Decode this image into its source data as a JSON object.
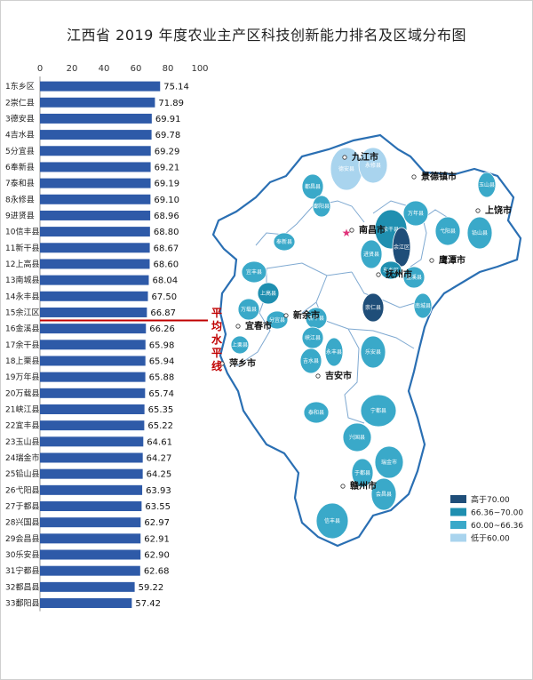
{
  "title": "江西省 2019 年度农业主产区科技创新能力排名及区域分布图",
  "chart_data": {
    "type": "bar",
    "orientation": "horizontal",
    "xlim": [
      0,
      100
    ],
    "xticks": [
      "0",
      "20",
      "40",
      "60",
      "80",
      "100"
    ],
    "categories": [
      "1东乡区",
      "2崇仁县",
      "3德安县",
      "4吉水县",
      "5分宜县",
      "6奉新县",
      "7泰和县",
      "8永修县",
      "9进贤县",
      "10信丰县",
      "11新干县",
      "12上高县",
      "13南城县",
      "14永丰县",
      "15余江区",
      "16金溪县",
      "17余干县",
      "18上栗县",
      "19万年县",
      "20万载县",
      "21峡江县",
      "22宜丰县",
      "23玉山县",
      "24瑞金市",
      "25铅山县",
      "26弋阳县",
      "27于都县",
      "28兴国县",
      "29会昌县",
      "30乐安县",
      "31宁都县",
      "32都昌县",
      "33鄱阳县"
    ],
    "values": [
      75.14,
      71.89,
      69.91,
      69.78,
      69.29,
      69.21,
      69.19,
      69.1,
      68.96,
      68.8,
      68.67,
      68.6,
      68.04,
      67.5,
      66.87,
      66.26,
      65.98,
      65.94,
      65.88,
      65.74,
      65.35,
      65.22,
      64.61,
      64.27,
      64.25,
      63.93,
      63.55,
      62.97,
      62.91,
      62.9,
      62.68,
      59.22,
      57.42
    ],
    "labels": [
      "75.14",
      "71.89",
      "69.91",
      "69.78",
      "69.29",
      "69.21",
      "69.19",
      "69.10",
      "68.96",
      "68.80",
      "68.67",
      "68.60",
      "68.04",
      "67.50",
      "66.87",
      "66.26",
      "65.98",
      "65.94",
      "65.88",
      "65.74",
      "65.35",
      "65.22",
      "64.61",
      "64.27",
      "64.25",
      "63.93",
      "63.55",
      "62.97",
      "62.91",
      "62.90",
      "62.68",
      "59.22",
      "57.42"
    ],
    "bar_color": "#2e5aa8",
    "average_label": "平均水平线",
    "average_line_color": "#c00000",
    "average_after_index": 14
  },
  "map": {
    "cities": [
      {
        "name": "九江市"
      },
      {
        "name": "景德镇市"
      },
      {
        "name": "上饶市"
      },
      {
        "name": "南昌市"
      },
      {
        "name": "鹰潭市"
      },
      {
        "name": "抚州市"
      },
      {
        "name": "新余市"
      },
      {
        "name": "宜春市"
      },
      {
        "name": "萍乡市"
      },
      {
        "name": "吉安市"
      },
      {
        "name": "赣州市"
      }
    ],
    "counties": [
      "都昌县",
      "鄱阳县",
      "德安县",
      "永修县",
      "玉山县",
      "余干县",
      "万年县",
      "弋阳县",
      "铅山县",
      "奉新县",
      "进贤县",
      "余江区",
      "东乡区",
      "金溪县",
      "宜丰县",
      "上高县",
      "万载县",
      "分宜县",
      "崇仁县",
      "南城县",
      "新干县",
      "峡江县",
      "永丰县",
      "乐安县",
      "吉水县",
      "泰和县",
      "宁都县",
      "兴国县",
      "瑞金市",
      "于都县",
      "会昌县",
      "信丰县",
      "上栗县"
    ],
    "legend": [
      {
        "label": "高于70.00",
        "color": "#1f4e79"
      },
      {
        "label": "66.36~70.00",
        "color": "#1f8fb0"
      },
      {
        "label": "60.00~66.36",
        "color": "#3aa9c9"
      },
      {
        "label": "低于60.00",
        "color": "#a9d4ee"
      }
    ],
    "star_color": "#e0337a"
  }
}
